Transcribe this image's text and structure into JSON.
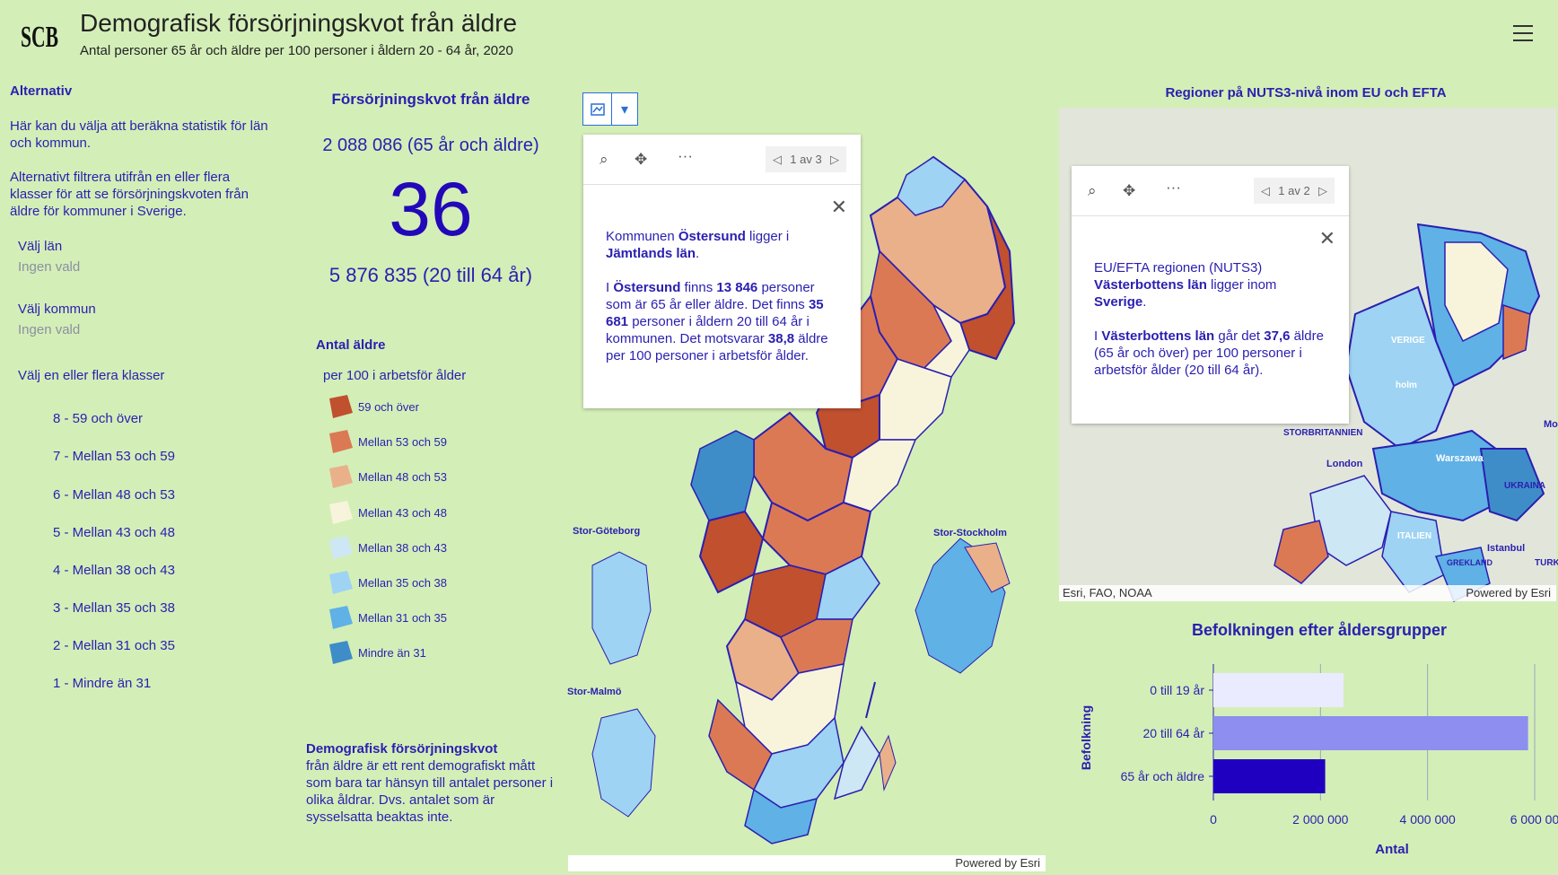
{
  "header": {
    "logo_text": "SCB",
    "title": "Demografisk försörjningskvot från äldre",
    "subtitle": "Antal personer 65 år och äldre per 100 personer i åldern 20 - 64 år, 2020",
    "menu_icon": "hamburger-menu-icon"
  },
  "left_panel": {
    "heading": "Alternativ",
    "intro1": "Här kan du välja att beräkna statistik för län och kommun.",
    "intro2": "Alternativt filtrera utifrån en eller flera klasser för att se försörjningskvoten från äldre för kommuner i Sverige.",
    "lan_label": "Välj län",
    "lan_value": "Ingen vald",
    "kommun_label": "Välj kommun",
    "kommun_value": "Ingen vald",
    "classes_label": "Välj en eller flera klasser",
    "classes": [
      "8 - 59 och över",
      "7 - Mellan 53 och 59",
      "6 - Mellan 48 och 53",
      "5 - Mellan 43 och 48",
      "4 - Mellan 38 och 43",
      "3 - Mellan 35 och 38",
      "2 - Mellan 31 och 35",
      "1 - Mindre än 31"
    ]
  },
  "kpi": {
    "title": "Försörjningskvot från äldre",
    "old_count": "2 088 086 (65 år och äldre)",
    "value": "36",
    "work_count": "5 876 835 (20 till 64 år)"
  },
  "legend": {
    "title": "Antal äldre",
    "subtitle": "per 100 i arbetsför ålder",
    "items": [
      {
        "label": "59 och över",
        "color": "#c0502e"
      },
      {
        "label": "Mellan 53 och 59",
        "color": "#dc7955"
      },
      {
        "label": "Mellan 48 och 53",
        "color": "#e9b08a"
      },
      {
        "label": "Mellan 43 och 48",
        "color": "#f8f4dc"
      },
      {
        "label": "Mellan 38 och 43",
        "color": "#cde7f5"
      },
      {
        "label": "Mellan 35 och 38",
        "color": "#9ed3f3"
      },
      {
        "label": "Mellan 31 och 35",
        "color": "#5fb1e6"
      },
      {
        "label": "Mindre än 31",
        "color": "#3f8dc8"
      }
    ]
  },
  "note": {
    "heading": "Demografisk försörjningskvot",
    "text": "från äldre är ett rent demografiskt mått som bara tar hänsyn till antalet personer i olika åldrar. Dvs. antalet som är sysselsatta beaktas inte."
  },
  "sweden_map": {
    "popup": {
      "pager": "1 av 3",
      "line1_a": "Kommunen ",
      "line1_b": "Östersund",
      "line1_c": " ligger i",
      "line2": "Jämtlands län",
      "line3_a": "I ",
      "line3_b": "Östersund",
      "line3_c": " finns ",
      "line3_d": "13 846",
      "line3_e": " personer som är 65 år eller äldre. Det finns ",
      "line4_a": "35 681",
      "line4_b": " personer i åldern 20 till 64 år i kommunen. Det motsvarar ",
      "line4_c": "38,8",
      "line4_d": " äldre per 100 personer i arbetsför ålder."
    },
    "inset_labels": [
      "Stor-Stockholm",
      "Stor-Göteborg",
      "Stor-Malmö"
    ],
    "attribution": "Powered by Esri"
  },
  "eu_map": {
    "title": "Regioner på NUTS3-nivå inom EU och EFTA",
    "popup": {
      "pager": "1 av 2",
      "line1": "EU/EFTA regionen (NUTS3)",
      "line2_a": "Västerbottens län",
      "line2_b": " ligger inom",
      "line3": "Sverige",
      "line4_a": "I ",
      "line4_b": "Västerbottens län",
      "line4_c": " går det ",
      "line4_d": "37,6",
      "line4_e": " äldre (65 år och över)  per 100 personer i arbetsför ålder (20 till 64 år)."
    },
    "place_labels": [
      "VERIGE",
      "holm",
      "STORBRITANNIEN",
      "London",
      "Warszawa",
      "UKRAINA",
      "ITALIEN",
      "Istanbul",
      "GREKLAND",
      "TURK",
      "Mo"
    ],
    "attribution_left": "Esri, FAO, NOAA",
    "attribution_right": "Powered by Esri"
  },
  "chart_data": {
    "type": "bar",
    "orientation": "horizontal",
    "title": "Befolkningen efter åldersgrupper",
    "categories": [
      "0 till 19 år",
      "20 till 64 år",
      "65 år och äldre"
    ],
    "values": [
      2430000,
      5876835,
      2088086
    ],
    "colors": [
      "#ebebff",
      "#8e8ef0",
      "#2000c0"
    ],
    "xlabel": "Antal",
    "ylabel": "Befolkning",
    "xlim": [
      0,
      6000000
    ],
    "xticks": [
      "0",
      "2 000 000",
      "4 000 000",
      "6 000 00"
    ],
    "grid": true
  }
}
